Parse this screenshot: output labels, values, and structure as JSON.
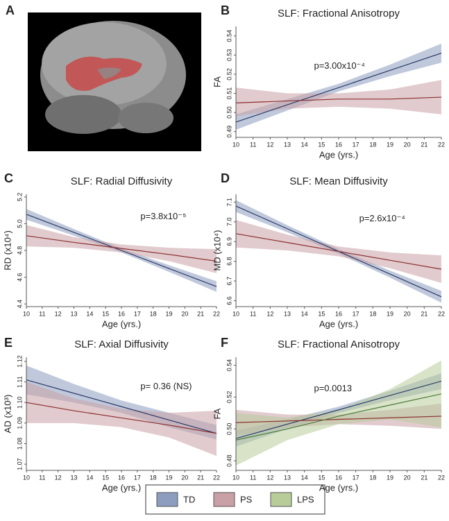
{
  "image_panel": {
    "label": "A"
  },
  "chart_data": [
    {
      "type": "line",
      "label": "B",
      "title": "SLF: Fractional Anisotropy",
      "y_label": "FA",
      "x_label": "Age (yrs.)",
      "annotation": "p=3.00x10⁻⁴",
      "x": [
        10,
        13,
        16,
        19,
        22
      ],
      "xlim": [
        10,
        22
      ],
      "xticks": [
        10,
        11,
        12,
        13,
        14,
        15,
        16,
        17,
        18,
        19,
        20,
        21,
        22
      ],
      "ylim": [
        0.487,
        0.545
      ],
      "yticks": [
        0.49,
        {
          "value": 0.5,
          "label": "0.50"
        },
        0.51,
        0.52,
        0.53,
        0.54
      ],
      "series": [
        {
          "color": "#2b3a66",
          "band_color": "#8d9dbf",
          "values": [
            0.495,
            0.504,
            0.513,
            0.522,
            0.531
          ],
          "upper": [
            0.499,
            0.507,
            0.515,
            0.525,
            0.536
          ],
          "lower": [
            0.491,
            0.501,
            0.511,
            0.519,
            0.526
          ]
        },
        {
          "color": "#8b2e2e",
          "band_color": "#c9a0a6",
          "values": [
            0.505,
            0.506,
            0.507,
            0.507,
            0.508
          ],
          "upper": [
            0.513,
            0.51,
            0.51,
            0.512,
            0.517
          ],
          "lower": [
            0.498,
            0.502,
            0.503,
            0.502,
            0.499
          ]
        }
      ]
    },
    {
      "type": "line",
      "label": "C",
      "title": "SLF: Radial Diffusivity",
      "y_label": "RD (x10⁴)",
      "x_label": "Age (yrs.)",
      "annotation": "p=3.8x10⁻⁵",
      "x": [
        10,
        13,
        16,
        19,
        22
      ],
      "xlim": [
        10,
        22
      ],
      "xticks": [
        10,
        11,
        12,
        13,
        14,
        15,
        16,
        17,
        18,
        19,
        20,
        21,
        22
      ],
      "ylim": [
        4.38,
        5.22
      ],
      "yticks": [
        4.4,
        4.6,
        4.8,
        {
          "value": 5,
          "label": "5.0"
        },
        5.2
      ],
      "series": [
        {
          "color": "#2b3a66",
          "band_color": "#8d9dbf",
          "values": [
            5.07,
            4.935,
            4.8,
            4.665,
            4.53
          ],
          "upper": [
            5.11,
            4.96,
            4.815,
            4.69,
            4.57
          ],
          "lower": [
            5.03,
            4.91,
            4.785,
            4.64,
            4.49
          ]
        },
        {
          "color": "#8b2e2e",
          "band_color": "#c9a0a6",
          "values": [
            4.91,
            4.86,
            4.815,
            4.77,
            4.72
          ],
          "upper": [
            4.99,
            4.9,
            4.845,
            4.82,
            4.81
          ],
          "lower": [
            4.83,
            4.82,
            4.785,
            4.72,
            4.63
          ]
        }
      ]
    },
    {
      "type": "line",
      "label": "D",
      "title": "SLF: Mean Diffusivity",
      "y_label": "MD (x10⁴)",
      "x_label": "Age (yrs.)",
      "annotation": "p=2.6x10⁻⁴",
      "x": [
        10,
        13,
        16,
        19,
        22
      ],
      "xlim": [
        10,
        22
      ],
      "xticks": [
        10,
        11,
        12,
        13,
        14,
        15,
        16,
        17,
        18,
        19,
        20,
        21,
        22
      ],
      "ylim": [
        6.57,
        7.14
      ],
      "yticks": [
        6.6,
        6.7,
        6.8,
        6.9,
        {
          "value": 7,
          "label": "7.0"
        },
        7.1
      ],
      "series": [
        {
          "color": "#2b3a66",
          "band_color": "#8d9dbf",
          "values": [
            7.08,
            6.965,
            6.85,
            6.735,
            6.62
          ],
          "upper": [
            7.11,
            6.983,
            6.862,
            6.753,
            6.65
          ],
          "lower": [
            7.05,
            6.947,
            6.838,
            6.717,
            6.59
          ]
        },
        {
          "color": "#8b2e2e",
          "band_color": "#c9a0a6",
          "values": [
            6.94,
            6.895,
            6.85,
            6.805,
            6.76
          ],
          "upper": [
            7.01,
            6.935,
            6.875,
            6.845,
            6.83
          ],
          "lower": [
            6.87,
            6.855,
            6.825,
            6.765,
            6.69
          ]
        }
      ]
    },
    {
      "type": "line",
      "label": "E",
      "title": "SLF: Axial Diffusivity",
      "y_label": "AD (x10³)",
      "x_label": "Age (yrs.)",
      "annotation": "p= 0.36 (NS)",
      "x": [
        10,
        13,
        16,
        19,
        22
      ],
      "xlim": [
        10,
        22
      ],
      "xticks": [
        10,
        11,
        12,
        13,
        14,
        15,
        16,
        17,
        18,
        19,
        20,
        21,
        22
      ],
      "ylim": [
        1.067,
        1.122
      ],
      "yticks": [
        1.07,
        1.08,
        1.09,
        {
          "value": 1.1,
          "label": "1.10"
        },
        1.11,
        1.12
      ],
      "series": [
        {
          "color": "#2b3a66",
          "band_color": "#8d9dbf",
          "values": [
            1.111,
            1.1045,
            1.098,
            1.0915,
            1.085
          ],
          "upper": [
            1.118,
            1.109,
            1.101,
            1.095,
            1.089
          ],
          "lower": [
            1.104,
            1.1,
            1.095,
            1.088,
            1.082
          ]
        },
        {
          "color": "#8b2e2e",
          "band_color": "#c9a0a6",
          "values": [
            1.1,
            1.096,
            1.0925,
            1.089,
            1.085
          ],
          "upper": [
            1.11,
            1.102,
            1.097,
            1.095,
            1.096
          ],
          "lower": [
            1.09,
            1.09,
            1.088,
            1.083,
            1.074
          ]
        }
      ]
    },
    {
      "type": "line",
      "label": "F",
      "title": "SLF: Fractional Anisotropy",
      "y_label": "FA",
      "x_label": "Age (yrs.)",
      "annotation": "p=0.0013",
      "x": [
        10,
        13,
        16,
        19,
        22
      ],
      "xlim": [
        10,
        22
      ],
      "xticks": [
        10,
        11,
        12,
        13,
        14,
        15,
        16,
        17,
        18,
        19,
        20,
        21,
        22
      ],
      "ylim": [
        0.474,
        0.545
      ],
      "yticks": [
        0.48,
        {
          "value": 0.5,
          "label": "0.50"
        },
        0.52,
        0.54
      ],
      "series": [
        {
          "name": "TD",
          "color": "#2b3a66",
          "band_color": "#8d9dbf",
          "values": [
            0.494,
            0.503,
            0.512,
            0.521,
            0.53
          ],
          "upper": [
            0.499,
            0.506,
            0.514,
            0.524,
            0.535
          ],
          "lower": [
            0.489,
            0.5,
            0.51,
            0.518,
            0.525
          ]
        },
        {
          "name": "PS",
          "color": "#8b2e2e",
          "band_color": "#c9a0a6",
          "values": [
            0.504,
            0.505,
            0.506,
            0.507,
            0.508
          ],
          "upper": [
            0.512,
            0.509,
            0.509,
            0.512,
            0.516
          ],
          "lower": [
            0.496,
            0.501,
            0.503,
            0.502,
            0.5
          ]
        },
        {
          "name": "LPS",
          "color": "#4a7a3a",
          "band_color": "#b8cc9a",
          "values": [
            0.493,
            0.5,
            0.508,
            0.515,
            0.522
          ],
          "upper": [
            0.51,
            0.507,
            0.512,
            0.525,
            0.543
          ],
          "lower": [
            0.477,
            0.493,
            0.503,
            0.506,
            0.501
          ]
        }
      ]
    }
  ]
}
